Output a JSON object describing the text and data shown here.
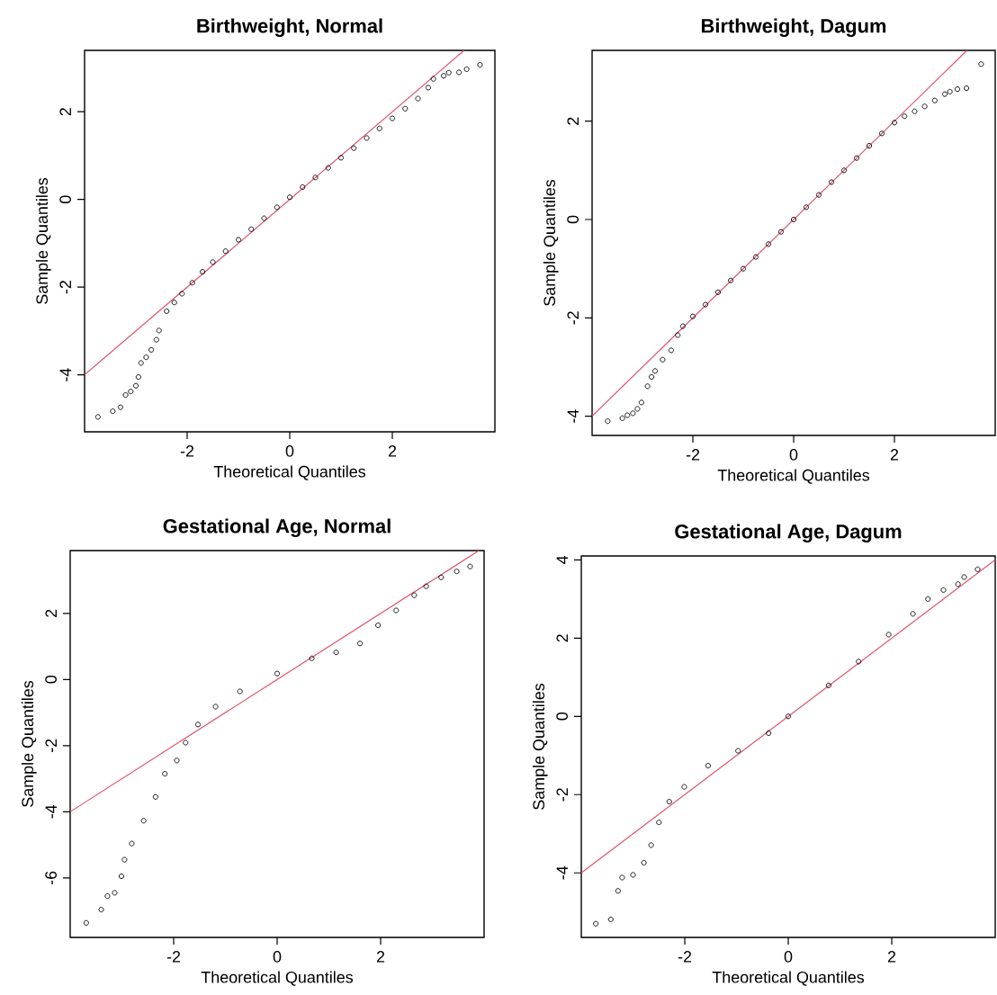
{
  "chart_data": [
    {
      "type": "scatter",
      "title": "Birthweight, Normal",
      "xlabel": "Theoretical Quantiles",
      "ylabel": "Sample Quantiles",
      "xlim": [
        -4,
        4
      ],
      "ylim": [
        -5.3,
        3.4
      ],
      "xticks": [
        -2,
        0,
        2
      ],
      "yticks": [
        -4,
        -2,
        0,
        2
      ],
      "marker": "circle",
      "series": [
        {
          "color": "#000000",
          "x": [
            -3.74,
            -3.45,
            -3.3,
            -3.2,
            -3.1,
            -3.0,
            -2.95,
            -2.9,
            -2.8,
            -2.7,
            -2.6,
            -2.55,
            -2.4,
            -2.25,
            -2.1,
            -1.9,
            -1.7,
            -1.5,
            -1.25,
            -1.0,
            -0.75,
            -0.5,
            -0.25,
            0,
            0.25,
            0.5,
            0.75,
            1.0,
            1.25,
            1.5,
            1.75,
            2.0,
            2.25,
            2.5,
            2.7,
            2.8,
            3.0,
            3.1,
            3.3,
            3.45,
            3.71
          ],
          "values": [
            -4.96,
            -4.83,
            -4.74,
            -4.46,
            -4.38,
            -4.25,
            -4.05,
            -3.73,
            -3.6,
            -3.43,
            -3.2,
            -2.99,
            -2.55,
            -2.35,
            -2.15,
            -1.9,
            -1.65,
            -1.43,
            -1.18,
            -0.92,
            -0.68,
            -0.43,
            -0.18,
            0.05,
            0.28,
            0.5,
            0.72,
            0.95,
            1.17,
            1.4,
            1.62,
            1.85,
            2.07,
            2.3,
            2.55,
            2.75,
            2.82,
            2.89,
            2.9,
            2.97,
            3.07
          ]
        },
        {
          "type": "line",
          "marker": "none",
          "color": "#df536b",
          "x": [
            -4,
            3.4
          ],
          "values": [
            -4,
            3.4
          ]
        }
      ]
    },
    {
      "type": "scatter",
      "title": "Birthweight, Dagum",
      "xlabel": "Theoretical Quantiles",
      "ylabel": "Sample Quantiles",
      "xlim": [
        -4,
        4
      ],
      "ylim": [
        -4.39,
        3.44
      ],
      "xticks": [
        -2,
        0,
        2
      ],
      "yticks": [
        -4,
        -2,
        0,
        2
      ],
      "marker": "circle",
      "series": [
        {
          "color": "#000000",
          "x": [
            -3.69,
            -3.4,
            -3.3,
            -3.19,
            -3.1,
            -3.02,
            -2.9,
            -2.82,
            -2.75,
            -2.6,
            -2.43,
            -2.3,
            -2.2,
            -2.0,
            -1.75,
            -1.5,
            -1.25,
            -1.0,
            -0.75,
            -0.5,
            -0.25,
            0,
            0.25,
            0.5,
            0.75,
            1.0,
            1.25,
            1.5,
            1.75,
            2.0,
            2.2,
            2.4,
            2.6,
            2.8,
            3.0,
            3.1,
            3.25,
            3.43,
            3.72
          ],
          "values": [
            -4.1,
            -4.04,
            -3.98,
            -3.94,
            -3.85,
            -3.72,
            -3.39,
            -3.2,
            -3.08,
            -2.85,
            -2.66,
            -2.35,
            -2.17,
            -1.97,
            -1.73,
            -1.48,
            -1.24,
            -1.0,
            -0.76,
            -0.5,
            -0.25,
            0.0,
            0.25,
            0.5,
            0.76,
            1.0,
            1.25,
            1.5,
            1.75,
            1.97,
            2.1,
            2.2,
            2.3,
            2.42,
            2.55,
            2.6,
            2.65,
            2.67,
            3.16
          ]
        },
        {
          "type": "line",
          "marker": "none",
          "color": "#df536b",
          "x": [
            -4,
            3.44
          ],
          "values": [
            -4,
            3.44
          ]
        }
      ]
    },
    {
      "type": "scatter",
      "title": "Gestational Age, Normal",
      "xlabel": "Theoretical Quantiles",
      "ylabel": "Sample Quantiles",
      "xlim": [
        -4,
        4
      ],
      "ylim": [
        -7.8,
        3.9
      ],
      "xticks": [
        -2,
        0,
        2
      ],
      "yticks": [
        -6,
        -4,
        -2,
        0,
        2
      ],
      "marker": "circle",
      "series": [
        {
          "color": "#000000",
          "x": [
            -3.69,
            -3.4,
            -3.28,
            -3.14,
            -3.01,
            -2.95,
            -2.81,
            -2.58,
            -2.35,
            -2.17,
            -1.94,
            -1.77,
            -1.53,
            -1.19,
            -0.72,
            0,
            0.67,
            1.14,
            1.6,
            1.95,
            2.3,
            2.65,
            2.88,
            3.17,
            3.47,
            3.73
          ],
          "values": [
            -7.36,
            -6.96,
            -6.55,
            -6.45,
            -5.95,
            -5.45,
            -4.96,
            -4.27,
            -3.55,
            -2.85,
            -2.45,
            -1.91,
            -1.36,
            -0.82,
            -0.36,
            0.18,
            0.64,
            0.82,
            1.09,
            1.64,
            2.09,
            2.55,
            2.82,
            3.09,
            3.27,
            3.42
          ]
        },
        {
          "type": "line",
          "marker": "none",
          "color": "#df536b",
          "x": [
            -4,
            3.9
          ],
          "values": [
            -4,
            3.9
          ]
        }
      ]
    },
    {
      "type": "scatter",
      "title": "Gestational Age, Dagum",
      "xlabel": "Theoretical Quantiles",
      "ylabel": "Sample Quantiles",
      "xlim": [
        -4,
        4
      ],
      "ylim": [
        -5.65,
        4.1
      ],
      "xticks": [
        -2,
        0,
        2
      ],
      "yticks": [
        -4,
        -2,
        0,
        2,
        4
      ],
      "marker": "circle",
      "series": [
        {
          "color": "#000000",
          "x": [
            -3.72,
            -3.43,
            -3.29,
            -3.21,
            -3.0,
            -2.79,
            -2.65,
            -2.5,
            -2.3,
            -2.01,
            -1.55,
            -0.97,
            -0.38,
            0,
            0.78,
            1.36,
            1.94,
            2.41,
            2.7,
            3.0,
            3.28,
            3.4,
            3.66
          ],
          "values": [
            -5.3,
            -5.19,
            -4.46,
            -4.12,
            -4.05,
            -3.74,
            -3.29,
            -2.71,
            -2.18,
            -1.8,
            -1.26,
            -0.88,
            -0.43,
            0,
            0.79,
            1.4,
            2.09,
            2.62,
            3.0,
            3.23,
            3.38,
            3.56,
            3.76
          ]
        },
        {
          "type": "line",
          "marker": "none",
          "color": "#df536b",
          "x": [
            -4,
            4
          ],
          "values": [
            -4,
            4
          ]
        }
      ]
    }
  ]
}
